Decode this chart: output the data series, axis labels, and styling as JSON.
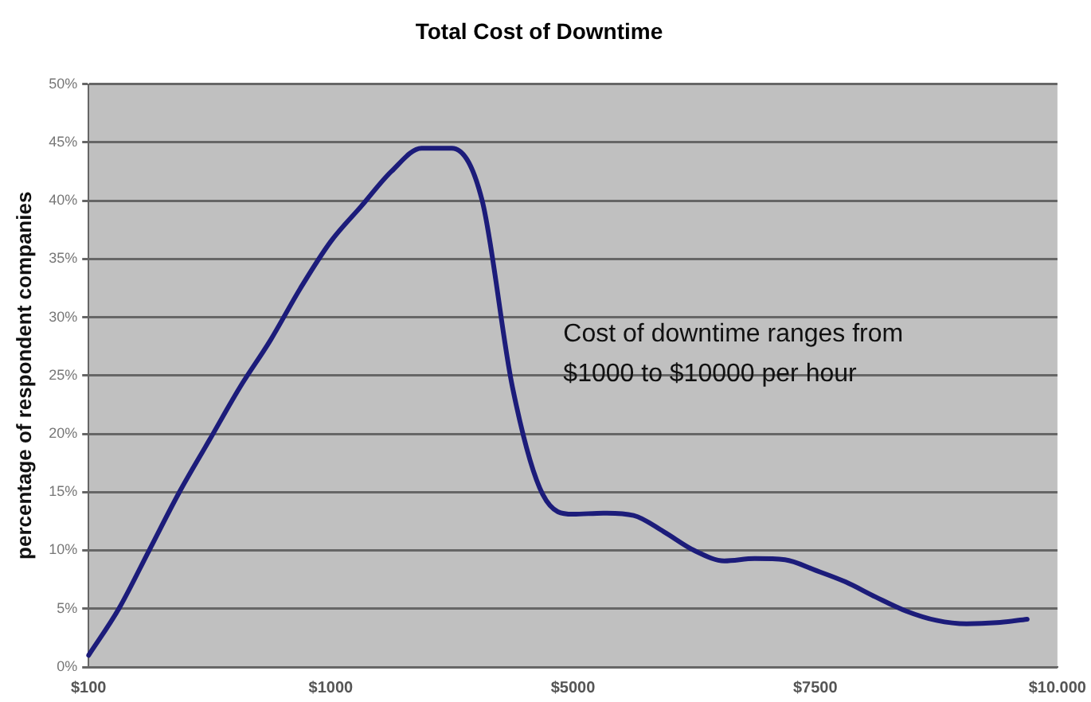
{
  "chart_data": {
    "type": "line",
    "title": "Total Cost of Downtime",
    "ylabel": "percentage of respondent companies",
    "categories": [
      "$100",
      null,
      null,
      null,
      null,
      null,
      null,
      null,
      "$1000",
      null,
      null,
      null,
      null,
      null,
      null,
      null,
      "$5000",
      null,
      null,
      null,
      null,
      null,
      null,
      null,
      "$7500",
      null,
      null,
      null,
      null,
      null,
      null,
      null,
      "$10.000"
    ],
    "series": [
      {
        "color": "#1c1c7a",
        "values": [
          1,
          5,
          10,
          15,
          19.5,
          24,
          28,
          32.5,
          36.5,
          39.5,
          42.5,
          44.5,
          44.5,
          40,
          24,
          14.8,
          13.1,
          13.2,
          13,
          11.6,
          10,
          9.1,
          9.3,
          9.2,
          8.3,
          7.3,
          6,
          4.8,
          4,
          3.7,
          3.8,
          4.1,
          null
        ]
      }
    ],
    "ylim": [
      0,
      50
    ],
    "yticks": [
      {
        "value": 0,
        "label": "0%"
      },
      {
        "value": 5,
        "label": "5%"
      },
      {
        "value": 10,
        "label": "10%"
      },
      {
        "value": 15,
        "label": "15%"
      },
      {
        "value": 20,
        "label": "20%"
      },
      {
        "value": 25,
        "label": "25%"
      },
      {
        "value": 30,
        "label": "30%"
      },
      {
        "value": 35,
        "label": "35%"
      },
      {
        "value": 40,
        "label": "40%"
      },
      {
        "value": 45,
        "label": "45%"
      },
      {
        "value": 50,
        "label": "50%"
      }
    ],
    "grid": "y",
    "legend": false,
    "marker": "none",
    "line_style": "solid",
    "annotations": [
      "Cost of downtime ranges from\n$1000 to $10000 per hour"
    ]
  }
}
